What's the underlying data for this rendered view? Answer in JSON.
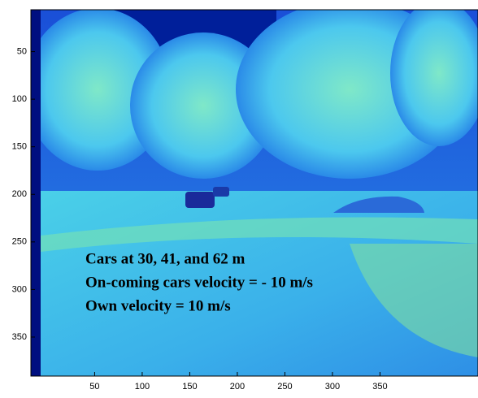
{
  "chart_data": {
    "type": "image",
    "annotations": [
      "Cars at 30, 41, and 62 m",
      "On-coming cars velocity = - 10 m/s",
      "Own velocity = 10 m/s"
    ],
    "xlim": [
      -17,
      453
    ],
    "ylim": [
      6,
      391
    ],
    "y_reversed": true,
    "xticks": [
      50,
      100,
      150,
      200,
      250,
      300,
      350
    ],
    "yticks": [
      50,
      100,
      150,
      200,
      250,
      300,
      350
    ]
  }
}
